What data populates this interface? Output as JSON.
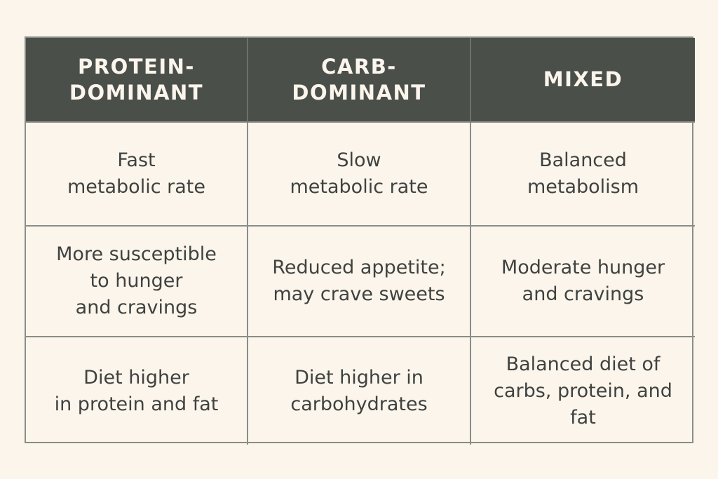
{
  "table": {
    "headers": [
      "PROTEIN-\nDOMINANT",
      "CARB-\nDOMINANT",
      "MIXED"
    ],
    "rows": [
      [
        "Fast\nmetabolic rate",
        "Slow\nmetabolic rate",
        "Balanced\nmetabolism"
      ],
      [
        "More susceptible\nto hunger\nand cravings",
        "Reduced appetite;\nmay crave sweets",
        "Moderate hunger\nand cravings"
      ],
      [
        "Diet higher\nin protein and fat",
        "Diet higher in\ncarbohydrates",
        "Balanced diet of\ncarbs, protein, and\nfat"
      ]
    ]
  }
}
